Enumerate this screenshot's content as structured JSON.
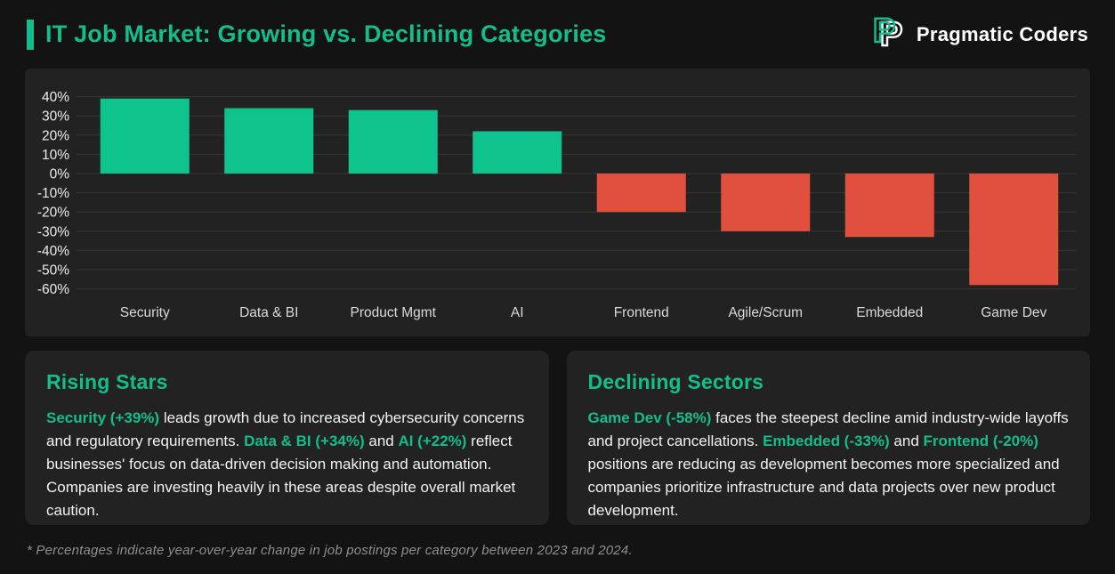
{
  "header": {
    "title": "IT Job Market: Growing vs. Declining Categories",
    "brand": "Pragmatic Coders",
    "logo_icon": "pragmatic-coders-double-p-logo"
  },
  "colors": {
    "page_bg": "#131313",
    "panel_bg": "#222222",
    "accent_green": "#13BE8C",
    "bar_green": "#0EC38C",
    "bar_red": "#E1503E",
    "grid": "#363636",
    "tick_text": "#ECECEC",
    "category_text": "#D9D9D9",
    "body_text": "#F2F2F2",
    "footnote_text": "#8F8F8F"
  },
  "chart_data": {
    "type": "bar",
    "title": "",
    "xlabel": "",
    "ylabel": "",
    "categories": [
      "Security",
      "Data & BI",
      "Product Mgmt",
      "AI",
      "Frontend",
      "Agile/Scrum",
      "Embedded",
      "Game Dev"
    ],
    "values": [
      39,
      34,
      33,
      22,
      -20,
      -30,
      -33,
      -58
    ],
    "unit": "%",
    "ylim": [
      -60,
      40
    ],
    "ytick_step": 10,
    "ytick_labels": [
      "40%",
      "30%",
      "20%",
      "10%",
      "0%",
      "-10%",
      "-20%",
      "-30%",
      "-40%",
      "-50%",
      "-60%"
    ],
    "grid": true,
    "legend": "none",
    "positive_color": "#0EC38C",
    "negative_color": "#E1503E"
  },
  "panels": {
    "rising": {
      "title": "Rising Stars",
      "segments": [
        {
          "text": "Security (+39%)",
          "highlight": true
        },
        {
          "text": " leads growth due to increased cybersecurity concerns and regulatory requirements. ",
          "highlight": false
        },
        {
          "text": "Data & BI (+34%)",
          "highlight": true
        },
        {
          "text": " and ",
          "highlight": false
        },
        {
          "text": "AI (+22%)",
          "highlight": true
        },
        {
          "text": " reflect businesses' focus on data-driven decision making and automation. Companies are investing heavily in these areas despite overall market caution.",
          "highlight": false
        }
      ]
    },
    "declining": {
      "title": "Declining Sectors",
      "segments": [
        {
          "text": "Game Dev (-58%)",
          "highlight": true
        },
        {
          "text": " faces the steepest decline amid industry-wide layoffs and project cancellations. ",
          "highlight": false
        },
        {
          "text": "Embedded (-33%)",
          "highlight": true
        },
        {
          "text": " and ",
          "highlight": false
        },
        {
          "text": "Frontend (-20%)",
          "highlight": true
        },
        {
          "text": " positions are reducing as development becomes more specialized and companies prioritize infrastructure and data projects over new product development.",
          "highlight": false
        }
      ]
    }
  },
  "footnote": "* Percentages indicate year-over-year change in job postings per category between 2023 and 2024."
}
